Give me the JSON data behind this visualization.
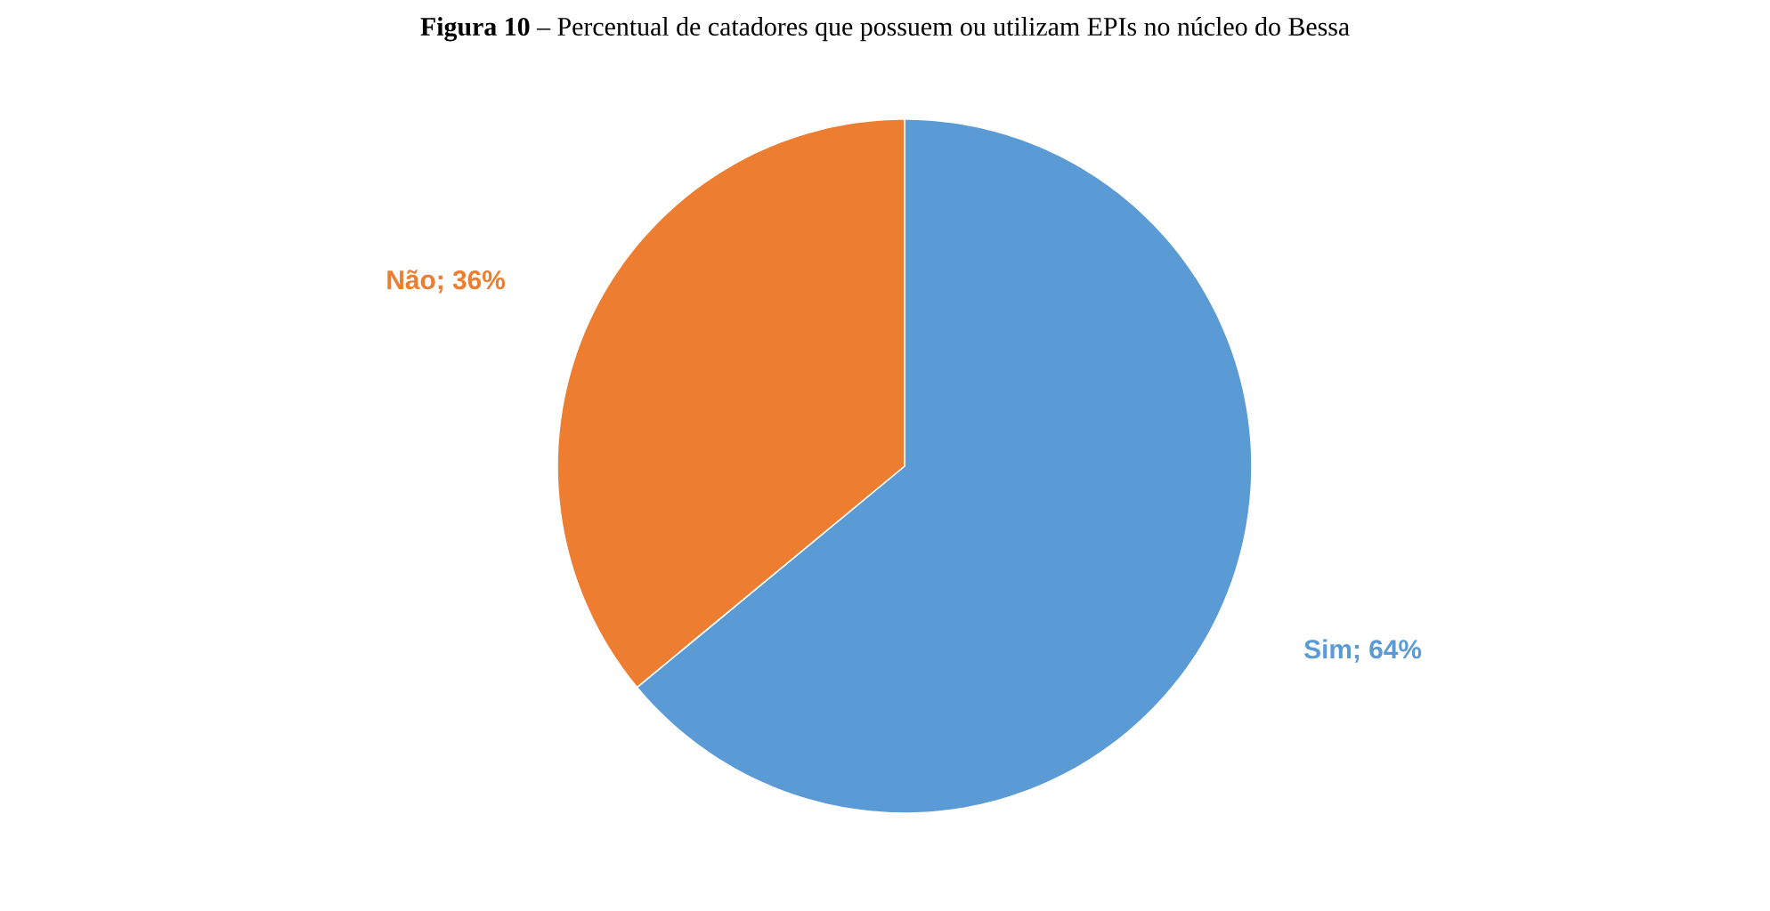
{
  "chart_data": {
    "type": "pie",
    "title": "**Figura 10** – Percentual de catadores que possuem ou utilizam EPIs no núcleo do Bessa",
    "categories": [
      "Sim",
      "Não"
    ],
    "values": [
      64,
      36
    ],
    "colors": [
      "#5b9bd5",
      "#ed7d31"
    ],
    "value_labels": [
      "; 64%",
      "; 36%"
    ]
  }
}
